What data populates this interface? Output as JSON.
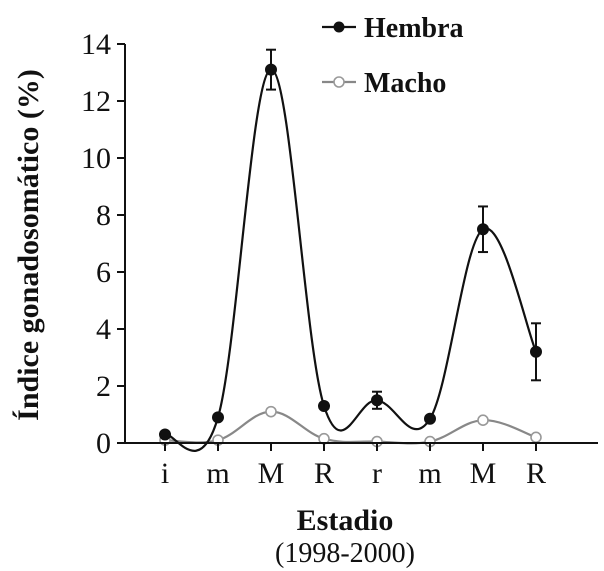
{
  "chart_data": {
    "type": "line",
    "categories": [
      "i",
      "m",
      "M",
      "R",
      "r",
      "m",
      "M",
      "R"
    ],
    "xlabel": "Estadio",
    "xlabel_sub": "(1998-2000)",
    "ylabel": "Índice gonadosomático (%)",
    "ylim": [
      0,
      14
    ],
    "yticks": [
      0,
      2,
      4,
      6,
      8,
      10,
      12,
      14
    ],
    "legend_position": "top-right",
    "grid": false,
    "series": [
      {
        "name": "Hembra",
        "marker": "filled-circle",
        "color": "#111111",
        "values": [
          0.3,
          0.9,
          13.1,
          1.3,
          1.5,
          0.85,
          7.5,
          3.2
        ],
        "errors": [
          0.0,
          0.0,
          0.7,
          0.0,
          0.3,
          0.0,
          0.8,
          1.0
        ]
      },
      {
        "name": "Macho",
        "marker": "open-circle",
        "color": "#888888",
        "values": [
          0.1,
          0.1,
          1.1,
          0.15,
          0.05,
          0.05,
          0.8,
          0.2
        ],
        "errors": [
          0,
          0,
          0,
          0,
          0,
          0,
          0,
          0
        ]
      }
    ]
  }
}
